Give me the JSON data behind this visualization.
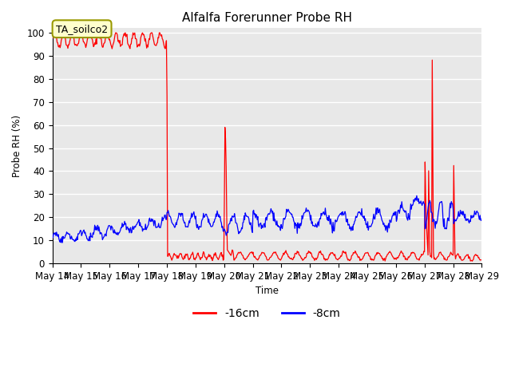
{
  "title": "Alfalfa Forerunner Probe RH",
  "ylabel": "Probe RH (%)",
  "xlabel": "Time",
  "ylim": [
    0,
    102
  ],
  "xlim": [
    0,
    360
  ],
  "figure_bg": "#ffffff",
  "plot_bg_color": "#e8e8e8",
  "grid_color": "#ffffff",
  "annotation_text": "TA_soilco2",
  "annotation_bg": "#ffffcc",
  "annotation_edge": "#999900",
  "line_16cm_color": "red",
  "line_8cm_color": "blue",
  "legend_16cm": "-16cm",
  "legend_8cm": "-8cm",
  "xtick_labels": [
    "May 14",
    "May 15",
    "May 16",
    "May 17",
    "May 18",
    "May 19",
    "May 20",
    "May 21",
    "May 22",
    "May 23",
    "May 24",
    "May 25",
    "May 26",
    "May 27",
    "May 28",
    "May 29"
  ],
  "xtick_positions": [
    0,
    24,
    48,
    72,
    96,
    120,
    144,
    168,
    192,
    216,
    240,
    264,
    288,
    312,
    336,
    360
  ]
}
